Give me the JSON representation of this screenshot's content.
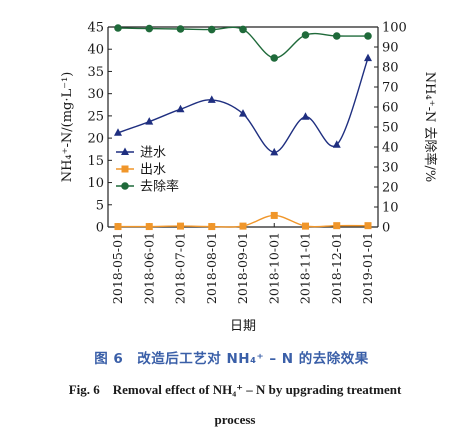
{
  "colors": {
    "inflow": "#1f2f80",
    "outflow": "#f0962a",
    "removal": "#1f6a3a"
  },
  "chart_data": {
    "type": "line",
    "categories": [
      "2018-05-01",
      "2018-06-01",
      "2018-07-01",
      "2018-08-01",
      "2018-09-01",
      "2018-10-01",
      "2018-11-01",
      "2018-12-01",
      "2019-01-01"
    ],
    "xlabel": "日期",
    "ylabel": "NH₄⁺-N/(mg·L⁻¹)",
    "y2label": "NH₄⁺-N 去除率/%",
    "ylim": [
      0,
      45
    ],
    "y2lim": [
      0,
      100
    ],
    "yticks": [
      0,
      5,
      10,
      15,
      20,
      25,
      30,
      35,
      40,
      45
    ],
    "y2ticks": [
      0,
      10,
      20,
      30,
      40,
      50,
      60,
      70,
      80,
      90,
      100
    ],
    "legend_position": "left-middle",
    "series": [
      {
        "name": "进水",
        "axis": "left",
        "marker": "triangle",
        "color": "#1f2f80",
        "values": [
          21.2,
          23.7,
          26.5,
          28.6,
          25.5,
          16.8,
          24.8,
          18.5,
          38.0
        ]
      },
      {
        "name": "出水",
        "axis": "left",
        "marker": "square",
        "color": "#f0962a",
        "values": [
          0.1,
          0.1,
          0.2,
          0.1,
          0.2,
          2.6,
          0.2,
          0.3,
          0.3
        ]
      },
      {
        "name": "去除率",
        "axis": "right",
        "marker": "circle",
        "color": "#1f6a3a",
        "values": [
          99.5,
          99.2,
          99.0,
          98.7,
          98.8,
          84.5,
          96.0,
          95.5,
          95.5
        ]
      }
    ]
  },
  "caption": {
    "cn": "图 6　改造后工艺对 NH₄⁺ – N 的去除效果",
    "en_line1": "Fig. 6　Removal effect of NH₄⁺ – N by upgrading treatment",
    "en_line2": "process"
  }
}
